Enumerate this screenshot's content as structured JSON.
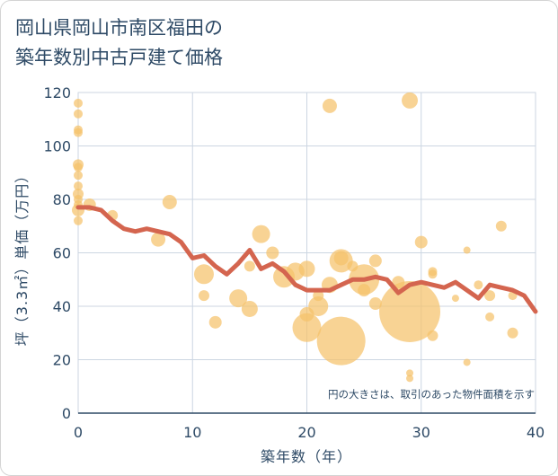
{
  "title_lines": [
    "岡山県岡山市南区福田の",
    "築年数別中古戸建て価格"
  ],
  "chart_data": {
    "type": "scatter",
    "title": "岡山県岡山市南区福田の築年数別中古戸建て価格",
    "xlabel": "築年数（年）",
    "ylabel": "坪（3.3㎡）単価（万円）",
    "xlim": [
      0,
      40
    ],
    "ylim": [
      0,
      120
    ],
    "x_ticks": [
      0,
      10,
      20,
      30,
      40
    ],
    "y_ticks": [
      0,
      20,
      40,
      60,
      80,
      100,
      120
    ],
    "grid": true,
    "note": "円の大きさは、取引のあった物件面積を示す",
    "colors": {
      "bubble": "#f5c26b",
      "line": "#d4654f",
      "grid": "#ccd6e2",
      "axis": "#2e4a66"
    },
    "bubbles": [
      {
        "x": 0,
        "y": 116,
        "s": 5
      },
      {
        "x": 0,
        "y": 112,
        "s": 5
      },
      {
        "x": 0,
        "y": 106,
        "s": 5
      },
      {
        "x": 0,
        "y": 105,
        "s": 5
      },
      {
        "x": 0,
        "y": 93,
        "s": 6
      },
      {
        "x": 0,
        "y": 92,
        "s": 5
      },
      {
        "x": 0,
        "y": 89,
        "s": 5
      },
      {
        "x": 0,
        "y": 85,
        "s": 5
      },
      {
        "x": 0,
        "y": 82,
        "s": 6
      },
      {
        "x": 0,
        "y": 80,
        "s": 5
      },
      {
        "x": 0,
        "y": 78,
        "s": 5
      },
      {
        "x": 0,
        "y": 76,
        "s": 7
      },
      {
        "x": 0,
        "y": 72,
        "s": 5
      },
      {
        "x": 1,
        "y": 78,
        "s": 7
      },
      {
        "x": 3,
        "y": 74,
        "s": 6
      },
      {
        "x": 7,
        "y": 65,
        "s": 8
      },
      {
        "x": 8,
        "y": 79,
        "s": 8
      },
      {
        "x": 11,
        "y": 52,
        "s": 11
      },
      {
        "x": 11,
        "y": 44,
        "s": 6
      },
      {
        "x": 12,
        "y": 34,
        "s": 7
      },
      {
        "x": 14,
        "y": 43,
        "s": 10
      },
      {
        "x": 15,
        "y": 39,
        "s": 9
      },
      {
        "x": 15,
        "y": 55,
        "s": 6
      },
      {
        "x": 16,
        "y": 67,
        "s": 10
      },
      {
        "x": 17,
        "y": 60,
        "s": 7
      },
      {
        "x": 18,
        "y": 51,
        "s": 12
      },
      {
        "x": 19,
        "y": 53,
        "s": 10
      },
      {
        "x": 20,
        "y": 54,
        "s": 9
      },
      {
        "x": 20,
        "y": 37,
        "s": 8
      },
      {
        "x": 20,
        "y": 32,
        "s": 16
      },
      {
        "x": 21,
        "y": 40,
        "s": 11
      },
      {
        "x": 21,
        "y": 44,
        "s": 6
      },
      {
        "x": 22,
        "y": 115,
        "s": 8
      },
      {
        "x": 22,
        "y": 48,
        "s": 9
      },
      {
        "x": 23,
        "y": 57,
        "s": 13
      },
      {
        "x": 23,
        "y": 58,
        "s": 8
      },
      {
        "x": 23,
        "y": 27,
        "s": 27
      },
      {
        "x": 24,
        "y": 55,
        "s": 6
      },
      {
        "x": 25,
        "y": 50,
        "s": 17
      },
      {
        "x": 25,
        "y": 46,
        "s": 7
      },
      {
        "x": 26,
        "y": 57,
        "s": 7
      },
      {
        "x": 26,
        "y": 41,
        "s": 7
      },
      {
        "x": 28,
        "y": 49,
        "s": 7
      },
      {
        "x": 29,
        "y": 117,
        "s": 9
      },
      {
        "x": 29,
        "y": 38,
        "s": 34
      },
      {
        "x": 29,
        "y": 15,
        "s": 4
      },
      {
        "x": 29,
        "y": 13,
        "s": 4
      },
      {
        "x": 30,
        "y": 64,
        "s": 7
      },
      {
        "x": 31,
        "y": 53,
        "s": 5
      },
      {
        "x": 31,
        "y": 52,
        "s": 5
      },
      {
        "x": 31,
        "y": 29,
        "s": 6
      },
      {
        "x": 33,
        "y": 43,
        "s": 4
      },
      {
        "x": 34,
        "y": 61,
        "s": 4
      },
      {
        "x": 34,
        "y": 19,
        "s": 4
      },
      {
        "x": 35,
        "y": 48,
        "s": 5
      },
      {
        "x": 36,
        "y": 44,
        "s": 6
      },
      {
        "x": 36,
        "y": 36,
        "s": 5
      },
      {
        "x": 37,
        "y": 70,
        "s": 6
      },
      {
        "x": 38,
        "y": 44,
        "s": 5
      },
      {
        "x": 38,
        "y": 30,
        "s": 6
      }
    ],
    "trend": {
      "x": [
        0,
        1,
        2,
        3,
        4,
        5,
        6,
        7,
        8,
        9,
        10,
        11,
        12,
        13,
        14,
        15,
        16,
        17,
        18,
        19,
        20,
        21,
        22,
        23,
        24,
        25,
        26,
        27,
        28,
        29,
        30,
        31,
        32,
        33,
        34,
        35,
        36,
        37,
        38,
        39,
        40
      ],
      "y": [
        77,
        77,
        76,
        72,
        69,
        68,
        69,
        68,
        67,
        64,
        58,
        59,
        55,
        52,
        56,
        61,
        54,
        56,
        53,
        48,
        46,
        46,
        46,
        48,
        50,
        50,
        51,
        50,
        45,
        48,
        49,
        48,
        47,
        49,
        46,
        43,
        48,
        47,
        46,
        44,
        38
      ]
    }
  }
}
